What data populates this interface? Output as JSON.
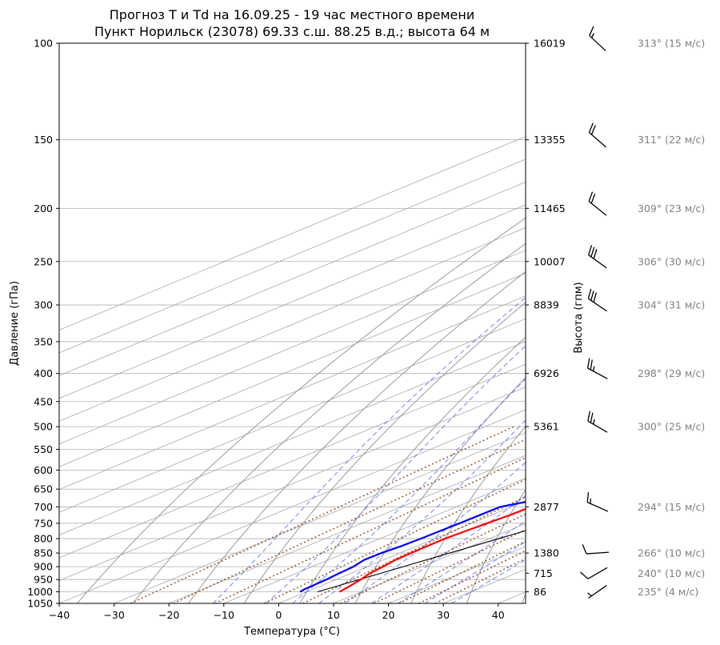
{
  "chart_data": {
    "type": "line",
    "title_line1": "Прогноз T и Td на 16.09.25 - 19 час местного времени",
    "title_line2": "Пункт Норильск (23078) 69.33 с.ш. 88.25 в.д.; высота 64 м",
    "xlabel": "Температура (°C)",
    "ylabel": "Давление (гПа)",
    "ylabel_right": "Высота (гпм)",
    "xlim": [
      -40,
      45
    ],
    "ylim": [
      1050,
      100
    ],
    "y_scale": "log",
    "grid": true,
    "x_ticks": [
      "−40",
      "−30",
      "−20",
      "−10",
      "0",
      "10",
      "20",
      "30",
      "40"
    ],
    "x_tick_values": [
      -40,
      -30,
      -20,
      -10,
      0,
      10,
      20,
      30,
      40
    ],
    "y_tick_values": [
      100,
      150,
      200,
      250,
      300,
      350,
      400,
      450,
      500,
      550,
      600,
      650,
      700,
      750,
      800,
      850,
      900,
      950,
      1000,
      1050
    ],
    "y_ticks": [
      "100",
      "150",
      "200",
      "250",
      "300",
      "350",
      "400",
      "450",
      "500",
      "550",
      "600",
      "650",
      "700",
      "750",
      "800",
      "850",
      "900",
      "950",
      "1000",
      "1050"
    ],
    "height_ticks": [
      {
        "p": 100,
        "label": "16019"
      },
      {
        "p": 150,
        "label": "13355"
      },
      {
        "p": 200,
        "label": "11465"
      },
      {
        "p": 250,
        "label": "10007"
      },
      {
        "p": 300,
        "label": "8839"
      },
      {
        "p": 400,
        "label": "6926"
      },
      {
        "p": 500,
        "label": "5361"
      },
      {
        "p": 700,
        "label": "2877"
      },
      {
        "p": 850,
        "label": "1380"
      },
      {
        "p": 925,
        "label": "715"
      },
      {
        "p": 1000,
        "label": "86"
      }
    ],
    "series": [
      {
        "key": "T",
        "color": "#ff0000",
        "points": [
          [
            1000,
            6.0
          ],
          [
            975,
            5.3
          ],
          [
            950,
            4.5
          ],
          [
            925,
            3.4
          ],
          [
            900,
            2.9
          ],
          [
            875,
            2.2
          ],
          [
            850,
            2.0
          ],
          [
            825,
            1.9
          ],
          [
            800,
            1.9
          ],
          [
            775,
            2.3
          ],
          [
            750,
            2.8
          ],
          [
            725,
            3.4
          ],
          [
            700,
            3.6
          ],
          [
            680,
            5.2
          ],
          [
            650,
            5.4
          ],
          [
            600,
            5.2
          ],
          [
            550,
            4.4
          ],
          [
            500,
            3.7
          ],
          [
            450,
            3.1
          ],
          [
            400,
            1.9
          ],
          [
            350,
            1.2
          ],
          [
            300,
            1.5
          ],
          [
            275,
            1.5
          ],
          [
            263,
            1.8
          ],
          [
            250,
            2.7
          ],
          [
            240,
            5.5
          ],
          [
            230,
            10.5
          ],
          [
            215,
            16.5
          ],
          [
            200,
            19.5
          ],
          [
            180,
            25.4
          ],
          [
            160,
            31.2
          ],
          [
            140,
            35.0
          ],
          [
            120,
            41.0
          ],
          [
            112,
            43.4
          ]
        ]
      },
      {
        "key": "Td",
        "color": "#0000ff",
        "points": [
          [
            1000,
            -1.2
          ],
          [
            990,
            -1.5
          ],
          [
            950,
            -1.8
          ],
          [
            925,
            -2.2
          ],
          [
            900,
            -2.5
          ],
          [
            875,
            -3.5
          ],
          [
            850,
            -3.4
          ],
          [
            825,
            -2.8
          ],
          [
            800,
            -2.5
          ],
          [
            775,
            -2.4
          ],
          [
            750,
            -2.2
          ],
          [
            725,
            -2.1
          ],
          [
            700,
            -2.0
          ],
          [
            680,
            1.5
          ],
          [
            650,
            3.1
          ],
          [
            600,
            2.6
          ],
          [
            550,
            1.5
          ],
          [
            500,
            -0.3
          ],
          [
            450,
            -1.3
          ],
          [
            400,
            -3.3
          ],
          [
            350,
            -4.4
          ],
          [
            300,
            -4.7
          ],
          [
            275,
            -3.6
          ],
          [
            250,
            -2.0
          ],
          [
            242,
            -4.3
          ],
          [
            235,
            -4.3
          ],
          [
            230,
            -3.3
          ],
          [
            215,
            5.0
          ],
          [
            200,
            11.2
          ],
          [
            190,
            13.6
          ],
          [
            170,
            18.0
          ],
          [
            150,
            20.0
          ],
          [
            130,
            25.4
          ],
          [
            115,
            29.5
          ],
          [
            100,
            35.5
          ]
        ]
      }
    ],
    "dry_adiabats_theta_C": [
      -40,
      -30,
      -20,
      -10,
      0,
      10,
      20,
      30,
      40,
      50,
      60,
      70,
      80,
      90,
      100,
      110,
      120,
      130,
      140,
      150,
      160,
      170
    ],
    "moist_adiabats_start_C": [
      -15,
      -5,
      0,
      5,
      10,
      15,
      20,
      25,
      30
    ],
    "mixing_ratio_gkg": [
      0.4,
      0.8,
      1.5,
      3,
      5,
      8,
      12,
      16,
      20,
      24
    ],
    "reference_line": [
      [
        1000,
        2
      ],
      [
        375,
        44.5
      ]
    ],
    "wind": [
      {
        "p": 100,
        "dir": 313,
        "spd": 15,
        "label": "313° (15 м/с)"
      },
      {
        "p": 150,
        "dir": 311,
        "spd": 22,
        "label": "311° (22 м/с)"
      },
      {
        "p": 200,
        "dir": 309,
        "spd": 23,
        "label": "309° (23 м/с)"
      },
      {
        "p": 250,
        "dir": 306,
        "spd": 30,
        "label": "306° (30 м/с)"
      },
      {
        "p": 300,
        "dir": 304,
        "spd": 31,
        "label": "304° (31 м/с)"
      },
      {
        "p": 400,
        "dir": 298,
        "spd": 29,
        "label": "298° (29 м/с)"
      },
      {
        "p": 500,
        "dir": 300,
        "spd": 25,
        "label": "300° (25 м/с)"
      },
      {
        "p": 700,
        "dir": 294,
        "spd": 15,
        "label": "294° (15 м/с)"
      },
      {
        "p": 850,
        "dir": 266,
        "spd": 10,
        "label": "266° (10 м/с)"
      },
      {
        "p": 925,
        "dir": 240,
        "spd": 10,
        "label": "240° (10 м/с)"
      },
      {
        "p": 1000,
        "dir": 235,
        "spd": 4,
        "label": "235° (4 м/с)"
      }
    ]
  }
}
